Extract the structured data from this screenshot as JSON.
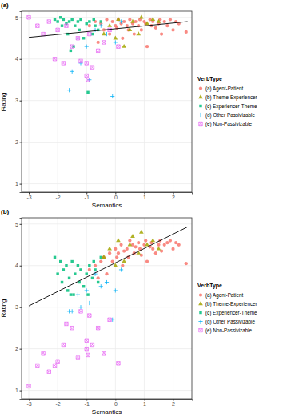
{
  "chart_data": [
    {
      "type": "scatter",
      "title": "(a)",
      "x_label": "Semantics",
      "y_label": "Rating",
      "legend_title": "VerbType",
      "legend": "right",
      "grid": true,
      "xlim": [
        -3.25,
        2.65
      ],
      "ylim": [
        0.8,
        5.15
      ],
      "xticks": [
        -3,
        -2,
        -1,
        0,
        1,
        2
      ],
      "yticks": [
        1,
        2,
        3,
        4,
        5
      ],
      "series": [
        {
          "name": "(a) Agent-Patient",
          "color": "#F8766D",
          "marker": "circle",
          "x": [
            -0.9,
            -0.7,
            -0.5,
            -0.4,
            -0.3,
            -0.2,
            -0.1,
            0.0,
            0.05,
            0.1,
            0.2,
            0.25,
            0.3,
            0.4,
            0.45,
            0.5,
            0.6,
            0.65,
            0.7,
            0.8,
            0.85,
            0.9,
            1.0,
            1.05,
            1.1,
            1.2,
            1.25,
            1.3,
            1.4,
            1.5,
            1.55,
            1.6,
            1.7,
            1.8,
            1.9,
            2.0,
            2.1,
            2.2,
            -0.6,
            2.45
          ],
          "y": [
            4.8,
            4.9,
            4.85,
            4.7,
            4.95,
            4.6,
            4.9,
            4.8,
            4.75,
            4.95,
            4.85,
            4.5,
            4.9,
            4.8,
            4.7,
            4.95,
            4.85,
            4.6,
            4.9,
            4.8,
            4.95,
            4.7,
            4.9,
            4.85,
            4.3,
            4.95,
            4.8,
            4.9,
            4.75,
            4.85,
            4.95,
            4.6,
            4.9,
            4.8,
            4.95,
            4.7,
            4.9,
            4.85,
            4.4,
            4.65
          ]
        },
        {
          "name": "(b) Theme-Experiencer",
          "color": "#A3A500",
          "marker": "triangle",
          "x": [
            -0.4,
            -0.2,
            0.0,
            0.1,
            0.3,
            0.5,
            0.6,
            0.8,
            0.9,
            1.1,
            1.3,
            1.5
          ],
          "y": [
            4.6,
            4.8,
            4.5,
            4.95,
            4.3,
            4.7,
            4.9,
            4.6,
            5.0,
            4.85,
            4.95,
            4.9
          ]
        },
        {
          "name": "(c) Experiencer-Theme",
          "color": "#00BF7D",
          "marker": "square",
          "x": [
            -2.1,
            -2.0,
            -1.9,
            -1.85,
            -1.8,
            -1.7,
            -1.65,
            -1.6,
            -1.5,
            -1.45,
            -1.4,
            -1.3,
            -1.25,
            -1.2,
            -1.1,
            -1.0,
            -0.95,
            -0.9,
            -0.8,
            -0.75,
            -0.7,
            -0.6,
            -0.5,
            -1.55
          ],
          "y": [
            4.95,
            4.9,
            5.0,
            4.8,
            4.95,
            4.85,
            4.6,
            4.9,
            4.95,
            4.3,
            4.8,
            4.9,
            4.7,
            4.95,
            4.5,
            4.85,
            3.2,
            4.9,
            4.6,
            4.95,
            4.8,
            4.7,
            4.9,
            4.2
          ]
        },
        {
          "name": "(d) Other Passivizable",
          "color": "#00B0F6",
          "marker": "plus",
          "x": [
            -1.6,
            -1.5,
            -1.3,
            -1.2,
            -1.0,
            -0.9,
            -0.7,
            -0.5,
            -0.3,
            -0.1,
            0.0,
            0.2
          ],
          "y": [
            3.25,
            3.7,
            4.5,
            3.9,
            4.3,
            3.5,
            4.7,
            4.8,
            4.6,
            3.1,
            4.4,
            4.9
          ]
        },
        {
          "name": "(e) Non-Passivizable",
          "color": "#E76BF3",
          "marker": "square-x",
          "x": [
            -3.0,
            -2.7,
            -2.5,
            -2.3,
            -2.1,
            -2.0,
            -1.8,
            -1.7,
            -1.5,
            -1.3,
            -1.2,
            -1.0,
            -1.0,
            -0.95,
            -0.9,
            -0.8,
            -0.6,
            -0.4,
            -0.2,
            0.1
          ],
          "y": [
            5.0,
            4.8,
            4.6,
            4.9,
            4.0,
            4.7,
            3.9,
            4.8,
            4.3,
            4.5,
            3.95,
            3.9,
            3.6,
            3.5,
            4.6,
            3.8,
            4.2,
            4.4,
            4.7,
            4.3
          ]
        },
        {
          "type": "line",
          "color": "#000000",
          "x": [
            -3,
            2.5
          ],
          "y": [
            4.52,
            4.9
          ]
        }
      ]
    },
    {
      "type": "scatter",
      "title": "(b)",
      "x_label": "Semantics",
      "y_label": "Rating",
      "legend_title": "VerbType",
      "legend": "right",
      "grid": true,
      "xlim": [
        -3.25,
        2.65
      ],
      "ylim": [
        0.8,
        5.15
      ],
      "xticks": [
        -3,
        -2,
        -1,
        0,
        1,
        2
      ],
      "yticks": [
        1,
        2,
        3,
        4,
        5
      ],
      "series": [
        {
          "name": "(a) Agent-Patient",
          "color": "#F8766D",
          "marker": "circle",
          "x": [
            -0.9,
            -0.7,
            -0.5,
            -0.4,
            -0.3,
            -0.2,
            -0.1,
            0.0,
            0.05,
            0.1,
            0.2,
            0.25,
            0.3,
            0.4,
            0.45,
            0.5,
            0.6,
            0.65,
            0.7,
            0.8,
            0.85,
            0.9,
            1.0,
            1.05,
            1.1,
            1.2,
            1.25,
            1.3,
            1.4,
            1.5,
            1.55,
            1.6,
            1.7,
            1.8,
            1.9,
            2.0,
            2.1,
            2.2,
            -0.6,
            2.45
          ],
          "y": [
            3.9,
            4.0,
            4.1,
            4.2,
            3.8,
            4.3,
            4.1,
            4.4,
            4.2,
            4.3,
            4.5,
            4.0,
            4.35,
            4.4,
            4.2,
            4.6,
            4.5,
            4.3,
            4.45,
            4.55,
            4.4,
            4.25,
            4.5,
            4.6,
            4.1,
            4.45,
            4.55,
            4.4,
            4.3,
            4.5,
            4.6,
            4.35,
            4.5,
            4.55,
            4.6,
            4.4,
            4.55,
            4.5,
            3.7,
            4.05
          ]
        },
        {
          "name": "(b) Theme-Experiencer",
          "color": "#A3A500",
          "marker": "triangle",
          "x": [
            -0.4,
            -0.2,
            0.0,
            0.1,
            0.3,
            0.5,
            0.6,
            0.8,
            0.9,
            1.1,
            1.3,
            1.5
          ],
          "y": [
            4.2,
            4.4,
            4.0,
            4.6,
            4.1,
            4.5,
            4.7,
            4.3,
            4.8,
            4.5,
            4.6,
            4.4
          ]
        },
        {
          "name": "(c) Experiencer-Theme",
          "color": "#00BF7D",
          "marker": "square",
          "x": [
            -2.1,
            -2.0,
            -1.9,
            -1.85,
            -1.8,
            -1.7,
            -1.65,
            -1.6,
            -1.5,
            -1.45,
            -1.4,
            -1.3,
            -1.25,
            -1.2,
            -1.1,
            -1.0,
            -0.95,
            -0.9,
            -0.8,
            -0.75,
            -0.7,
            -0.6,
            -0.5,
            -1.55
          ],
          "y": [
            4.2,
            3.8,
            4.1,
            3.6,
            3.9,
            4.0,
            3.4,
            3.7,
            4.1,
            3.3,
            3.8,
            4.0,
            3.6,
            3.9,
            3.5,
            3.8,
            3.3,
            4.0,
            3.7,
            4.1,
            3.9,
            3.6,
            4.2,
            3.3
          ]
        },
        {
          "name": "(d) Other Passivizable",
          "color": "#00B0F6",
          "marker": "plus",
          "x": [
            -1.6,
            -1.5,
            -1.3,
            -1.2,
            -1.0,
            -0.9,
            -0.7,
            -0.5,
            -0.3,
            -0.1,
            0.0,
            0.2
          ],
          "y": [
            2.9,
            2.9,
            3.3,
            3.0,
            3.4,
            3.1,
            3.8,
            3.5,
            3.6,
            2.7,
            3.4,
            3.9
          ]
        },
        {
          "name": "(e) Non-Passivizable",
          "color": "#E76BF3",
          "marker": "square-x",
          "x": [
            -3.0,
            -2.7,
            -2.5,
            -2.3,
            -2.1,
            -2.0,
            -1.8,
            -1.7,
            -1.5,
            -1.3,
            -1.2,
            -1.0,
            -1.0,
            -0.95,
            -0.9,
            -0.8,
            -0.6,
            -0.4,
            -0.2,
            0.1
          ],
          "y": [
            1.1,
            1.6,
            1.9,
            1.45,
            1.6,
            1.7,
            2.1,
            2.6,
            2.5,
            1.8,
            2.9,
            2.2,
            2.0,
            1.85,
            2.8,
            2.1,
            2.5,
            1.9,
            2.7,
            1.65
          ]
        },
        {
          "type": "line",
          "color": "#000000",
          "x": [
            -3,
            2.5
          ],
          "y": [
            3.03,
            4.93
          ]
        }
      ]
    }
  ]
}
